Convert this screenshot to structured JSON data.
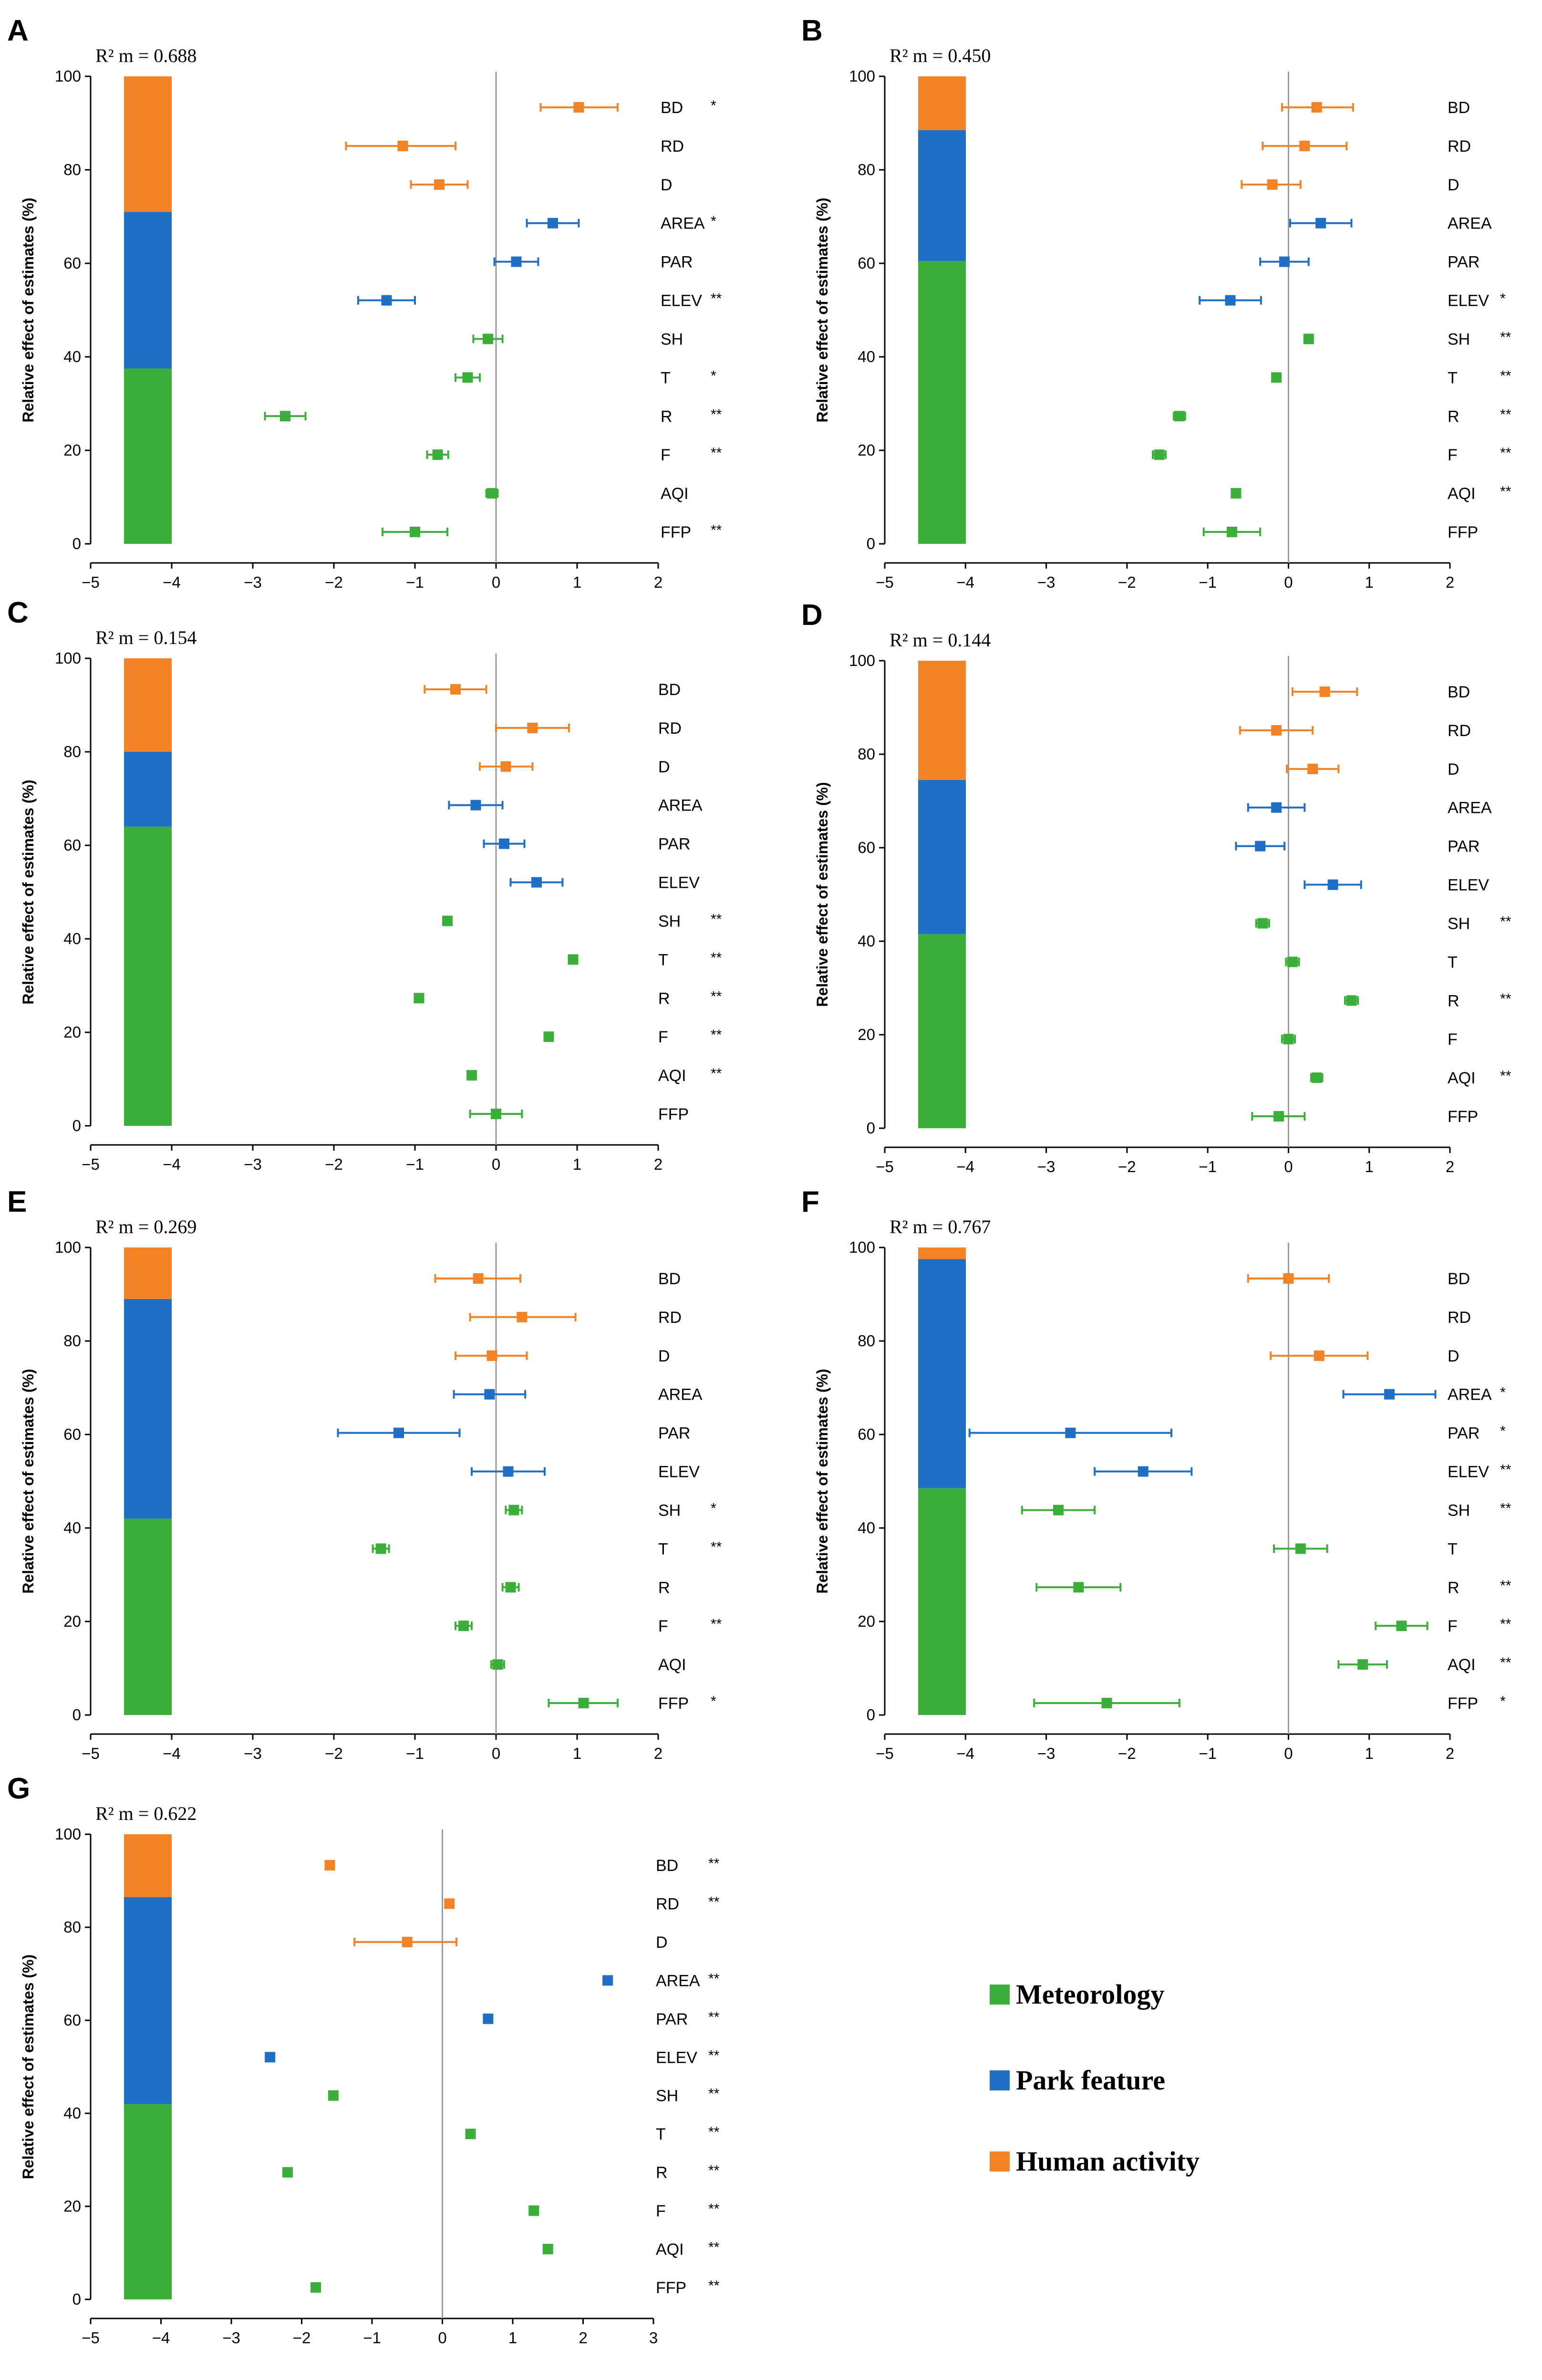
{
  "colors": {
    "meteorology": "#3cae3a",
    "park": "#1f6fc6",
    "human": "#f28326",
    "axis": "#000000",
    "zero_line": "#9a9a9a"
  },
  "legend": [
    {
      "key": "meteorology",
      "label": "Meteorology"
    },
    {
      "key": "park",
      "label": "Park feature"
    },
    {
      "key": "human",
      "label": "Human activity"
    }
  ],
  "chart_data": [
    {
      "type": "forest",
      "panel": "A",
      "r2_label": "R² m = 0.688",
      "ylabel": "Relative effect of estimates (%)",
      "ylim": [
        0,
        100
      ],
      "yticks": [
        "0",
        "20",
        "40",
        "60",
        "80",
        "100"
      ],
      "xlim": [
        -5,
        2
      ],
      "xticks": [
        "−5",
        "−4",
        "−3",
        "−2",
        "−1",
        "0",
        "1",
        "2"
      ],
      "stack": {
        "meteorology": 37.5,
        "park": 33.5,
        "human": 29
      },
      "variables": [
        {
          "name": "BD",
          "group": "human",
          "est": 1.02,
          "lo": 0.55,
          "hi": 1.5,
          "sig": "*"
        },
        {
          "name": "RD",
          "group": "human",
          "est": -1.15,
          "lo": -1.85,
          "hi": -0.5,
          "sig": ""
        },
        {
          "name": "D",
          "group": "human",
          "est": -0.7,
          "lo": -1.05,
          "hi": -0.35,
          "sig": ""
        },
        {
          "name": "AREA",
          "group": "park",
          "est": 0.7,
          "lo": 0.38,
          "hi": 1.02,
          "sig": "*"
        },
        {
          "name": "PAR",
          "group": "park",
          "est": 0.25,
          "lo": -0.02,
          "hi": 0.52,
          "sig": ""
        },
        {
          "name": "ELEV",
          "group": "park",
          "est": -1.35,
          "lo": -1.7,
          "hi": -1.0,
          "sig": "**"
        },
        {
          "name": "SH",
          "group": "meteorology",
          "est": -0.1,
          "lo": -0.28,
          "hi": 0.08,
          "sig": ""
        },
        {
          "name": "T",
          "group": "meteorology",
          "est": -0.35,
          "lo": -0.5,
          "hi": -0.2,
          "sig": "*"
        },
        {
          "name": "R",
          "group": "meteorology",
          "est": -2.6,
          "lo": -2.85,
          "hi": -2.35,
          "sig": "**"
        },
        {
          "name": "F",
          "group": "meteorology",
          "est": -0.72,
          "lo": -0.85,
          "hi": -0.59,
          "sig": "**"
        },
        {
          "name": "AQI",
          "group": "meteorology",
          "est": -0.05,
          "lo": -0.12,
          "hi": 0.02,
          "sig": ""
        },
        {
          "name": "FFP",
          "group": "meteorology",
          "est": -1.0,
          "lo": -1.4,
          "hi": -0.6,
          "sig": "**"
        }
      ]
    },
    {
      "type": "forest",
      "panel": "B",
      "r2_label": "R² m = 0.450",
      "ylabel": "Relative effect of estimates (%)",
      "ylim": [
        0,
        100
      ],
      "yticks": [
        "0",
        "20",
        "40",
        "60",
        "80",
        "100"
      ],
      "xlim": [
        -5,
        2
      ],
      "xticks": [
        "−5",
        "−4",
        "−3",
        "−2",
        "−1",
        "0",
        "1",
        "2"
      ],
      "stack": {
        "meteorology": 60.5,
        "park": 28,
        "human": 11.5
      },
      "variables": [
        {
          "name": "BD",
          "group": "human",
          "est": 0.35,
          "lo": -0.08,
          "hi": 0.8,
          "sig": ""
        },
        {
          "name": "RD",
          "group": "human",
          "est": 0.2,
          "lo": -0.32,
          "hi": 0.72,
          "sig": ""
        },
        {
          "name": "D",
          "group": "human",
          "est": -0.2,
          "lo": -0.58,
          "hi": 0.15,
          "sig": ""
        },
        {
          "name": "AREA",
          "group": "park",
          "est": 0.4,
          "lo": 0.02,
          "hi": 0.78,
          "sig": ""
        },
        {
          "name": "PAR",
          "group": "park",
          "est": -0.05,
          "lo": -0.35,
          "hi": 0.25,
          "sig": ""
        },
        {
          "name": "ELEV",
          "group": "park",
          "est": -0.72,
          "lo": -1.1,
          "hi": -0.34,
          "sig": "*"
        },
        {
          "name": "SH",
          "group": "meteorology",
          "est": 0.25,
          "lo": 0.2,
          "hi": 0.3,
          "sig": "**"
        },
        {
          "name": "T",
          "group": "meteorology",
          "est": -0.15,
          "lo": -0.2,
          "hi": -0.1,
          "sig": "**"
        },
        {
          "name": "R",
          "group": "meteorology",
          "est": -1.35,
          "lo": -1.42,
          "hi": -1.28,
          "sig": "**"
        },
        {
          "name": "F",
          "group": "meteorology",
          "est": -1.6,
          "lo": -1.68,
          "hi": -1.52,
          "sig": "**"
        },
        {
          "name": "AQI",
          "group": "meteorology",
          "est": -0.65,
          "lo": -0.7,
          "hi": -0.6,
          "sig": "**"
        },
        {
          "name": "FFP",
          "group": "meteorology",
          "est": -0.7,
          "lo": -1.05,
          "hi": -0.35,
          "sig": ""
        }
      ]
    },
    {
      "type": "forest",
      "panel": "C",
      "r2_label": "R² m = 0.154",
      "ylabel": "Relative effect of estimates (%)",
      "ylim": [
        0,
        100
      ],
      "yticks": [
        "0",
        "20",
        "40",
        "60",
        "80",
        "100"
      ],
      "xlim": [
        -5,
        2
      ],
      "xticks": [
        "−5",
        "−4",
        "−3",
        "−2",
        "−1",
        "0",
        "1",
        "2"
      ],
      "stack": {
        "meteorology": 64,
        "park": 16,
        "human": 20
      },
      "variables": [
        {
          "name": "BD",
          "group": "human",
          "est": -0.5,
          "lo": -0.88,
          "hi": -0.12,
          "sig": ""
        },
        {
          "name": "RD",
          "group": "human",
          "est": 0.45,
          "lo": 0.0,
          "hi": 0.9,
          "sig": ""
        },
        {
          "name": "D",
          "group": "human",
          "est": 0.12,
          "lo": -0.2,
          "hi": 0.45,
          "sig": ""
        },
        {
          "name": "AREA",
          "group": "park",
          "est": -0.25,
          "lo": -0.58,
          "hi": 0.08,
          "sig": ""
        },
        {
          "name": "PAR",
          "group": "park",
          "est": 0.1,
          "lo": -0.15,
          "hi": 0.35,
          "sig": ""
        },
        {
          "name": "ELEV",
          "group": "park",
          "est": 0.5,
          "lo": 0.18,
          "hi": 0.82,
          "sig": ""
        },
        {
          "name": "SH",
          "group": "meteorology",
          "est": -0.6,
          "lo": -0.65,
          "hi": -0.55,
          "sig": "**"
        },
        {
          "name": "T",
          "group": "meteorology",
          "est": 0.95,
          "lo": 0.9,
          "hi": 1.0,
          "sig": "**"
        },
        {
          "name": "R",
          "group": "meteorology",
          "est": -0.95,
          "lo": -1.0,
          "hi": -0.9,
          "sig": "**"
        },
        {
          "name": "F",
          "group": "meteorology",
          "est": 0.65,
          "lo": 0.6,
          "hi": 0.7,
          "sig": "**"
        },
        {
          "name": "AQI",
          "group": "meteorology",
          "est": -0.3,
          "lo": -0.35,
          "hi": -0.25,
          "sig": "**"
        },
        {
          "name": "FFP",
          "group": "meteorology",
          "est": 0.0,
          "lo": -0.32,
          "hi": 0.32,
          "sig": ""
        }
      ]
    },
    {
      "type": "forest",
      "panel": "D",
      "r2_label": "R² m = 0.144",
      "ylabel": "Relative effect of estimates (%)",
      "ylim": [
        0,
        100
      ],
      "yticks": [
        "0",
        "20",
        "40",
        "60",
        "80",
        "100"
      ],
      "xlim": [
        -5,
        2
      ],
      "xticks": [
        "−5",
        "−4",
        "−3",
        "−2",
        "−1",
        "0",
        "1",
        "2"
      ],
      "stack": {
        "meteorology": 41.5,
        "park": 33,
        "human": 25.5
      },
      "variables": [
        {
          "name": "BD",
          "group": "human",
          "est": 0.45,
          "lo": 0.05,
          "hi": 0.85,
          "sig": ""
        },
        {
          "name": "RD",
          "group": "human",
          "est": -0.15,
          "lo": -0.6,
          "hi": 0.3,
          "sig": ""
        },
        {
          "name": "D",
          "group": "human",
          "est": 0.3,
          "lo": -0.02,
          "hi": 0.62,
          "sig": ""
        },
        {
          "name": "AREA",
          "group": "park",
          "est": -0.15,
          "lo": -0.5,
          "hi": 0.2,
          "sig": ""
        },
        {
          "name": "PAR",
          "group": "park",
          "est": -0.35,
          "lo": -0.65,
          "hi": -0.05,
          "sig": ""
        },
        {
          "name": "ELEV",
          "group": "park",
          "est": 0.55,
          "lo": 0.2,
          "hi": 0.9,
          "sig": ""
        },
        {
          "name": "SH",
          "group": "meteorology",
          "est": -0.32,
          "lo": -0.4,
          "hi": -0.24,
          "sig": "**"
        },
        {
          "name": "T",
          "group": "meteorology",
          "est": 0.05,
          "lo": -0.03,
          "hi": 0.13,
          "sig": ""
        },
        {
          "name": "R",
          "group": "meteorology",
          "est": 0.78,
          "lo": 0.7,
          "hi": 0.86,
          "sig": "**"
        },
        {
          "name": "F",
          "group": "meteorology",
          "est": 0.0,
          "lo": -0.08,
          "hi": 0.08,
          "sig": ""
        },
        {
          "name": "AQI",
          "group": "meteorology",
          "est": 0.35,
          "lo": 0.28,
          "hi": 0.42,
          "sig": "**"
        },
        {
          "name": "FFP",
          "group": "meteorology",
          "est": -0.12,
          "lo": -0.45,
          "hi": 0.2,
          "sig": ""
        }
      ]
    },
    {
      "type": "forest",
      "panel": "E",
      "r2_label": "R² m = 0.269",
      "ylabel": "Relative effect of estimates (%)",
      "ylim": [
        0,
        100
      ],
      "yticks": [
        "0",
        "20",
        "40",
        "60",
        "80",
        "100"
      ],
      "xlim": [
        -5,
        2
      ],
      "xticks": [
        "−5",
        "−4",
        "−3",
        "−2",
        "−1",
        "0",
        "1",
        "2"
      ],
      "stack": {
        "meteorology": 42,
        "park": 47,
        "human": 11
      },
      "variables": [
        {
          "name": "BD",
          "group": "human",
          "est": -0.22,
          "lo": -0.75,
          "hi": 0.3,
          "sig": ""
        },
        {
          "name": "RD",
          "group": "human",
          "est": 0.32,
          "lo": -0.32,
          "hi": 0.98,
          "sig": ""
        },
        {
          "name": "D",
          "group": "human",
          "est": -0.05,
          "lo": -0.5,
          "hi": 0.38,
          "sig": ""
        },
        {
          "name": "AREA",
          "group": "park",
          "est": -0.08,
          "lo": -0.52,
          "hi": 0.36,
          "sig": ""
        },
        {
          "name": "PAR",
          "group": "park",
          "est": -1.2,
          "lo": -1.95,
          "hi": -0.45,
          "sig": ""
        },
        {
          "name": "ELEV",
          "group": "park",
          "est": 0.15,
          "lo": -0.3,
          "hi": 0.6,
          "sig": ""
        },
        {
          "name": "SH",
          "group": "meteorology",
          "est": 0.22,
          "lo": 0.12,
          "hi": 0.32,
          "sig": "*"
        },
        {
          "name": "T",
          "group": "meteorology",
          "est": -1.42,
          "lo": -1.52,
          "hi": -1.32,
          "sig": "**"
        },
        {
          "name": "R",
          "group": "meteorology",
          "est": 0.18,
          "lo": 0.08,
          "hi": 0.28,
          "sig": ""
        },
        {
          "name": "F",
          "group": "meteorology",
          "est": -0.4,
          "lo": -0.5,
          "hi": -0.3,
          "sig": "**"
        },
        {
          "name": "AQI",
          "group": "meteorology",
          "est": 0.02,
          "lo": -0.06,
          "hi": 0.1,
          "sig": ""
        },
        {
          "name": "FFP",
          "group": "meteorology",
          "est": 1.08,
          "lo": 0.65,
          "hi": 1.5,
          "sig": "*"
        }
      ]
    },
    {
      "type": "forest",
      "panel": "F",
      "r2_label": "R² m = 0.767",
      "ylabel": "Relative effect of estimates (%)",
      "ylim": [
        0,
        100
      ],
      "yticks": [
        "0",
        "20",
        "40",
        "60",
        "80",
        "100"
      ],
      "xlim": [
        -5,
        2
      ],
      "xticks": [
        "−5",
        "−4",
        "−3",
        "−2",
        "−1",
        "0",
        "1",
        "2"
      ],
      "stack": {
        "meteorology": 48.5,
        "park": 49,
        "human": 2.5
      },
      "variables": [
        {
          "name": "BD",
          "group": "human",
          "est": 0.0,
          "lo": -0.5,
          "hi": 0.5,
          "sig": ""
        },
        {
          "name": "RD",
          "group": "human",
          "est": null,
          "lo": null,
          "hi": null,
          "sig": ""
        },
        {
          "name": "D",
          "group": "human",
          "est": 0.38,
          "lo": -0.22,
          "hi": 0.98,
          "sig": ""
        },
        {
          "name": "AREA",
          "group": "park",
          "est": 1.25,
          "lo": 0.68,
          "hi": 1.82,
          "sig": "*"
        },
        {
          "name": "PAR",
          "group": "park",
          "est": -2.7,
          "lo": -3.95,
          "hi": -1.45,
          "sig": "*"
        },
        {
          "name": "ELEV",
          "group": "park",
          "est": -1.8,
          "lo": -2.4,
          "hi": -1.2,
          "sig": "**"
        },
        {
          "name": "SH",
          "group": "meteorology",
          "est": -2.85,
          "lo": -3.3,
          "hi": -2.4,
          "sig": "**"
        },
        {
          "name": "T",
          "group": "meteorology",
          "est": 0.15,
          "lo": -0.18,
          "hi": 0.48,
          "sig": ""
        },
        {
          "name": "R",
          "group": "meteorology",
          "est": -2.6,
          "lo": -3.12,
          "hi": -2.08,
          "sig": "**"
        },
        {
          "name": "F",
          "group": "meteorology",
          "est": 1.4,
          "lo": 1.08,
          "hi": 1.72,
          "sig": "**"
        },
        {
          "name": "AQI",
          "group": "meteorology",
          "est": 0.92,
          "lo": 0.62,
          "hi": 1.22,
          "sig": "**"
        },
        {
          "name": "FFP",
          "group": "meteorology",
          "est": -2.25,
          "lo": -3.15,
          "hi": -1.35,
          "sig": "*"
        }
      ]
    },
    {
      "type": "forest",
      "panel": "G",
      "r2_label": "R² m = 0.622",
      "ylabel": "Relative effect of estimates (%)",
      "ylim": [
        0,
        100
      ],
      "yticks": [
        "0",
        "20",
        "40",
        "60",
        "80",
        "100"
      ],
      "xlim": [
        -5,
        3
      ],
      "xticks": [
        "−5",
        "−4",
        "−3",
        "−2",
        "−1",
        "0",
        "1",
        "2",
        "3"
      ],
      "stack": {
        "meteorology": 42,
        "park": 44.5,
        "human": 13.5
      },
      "variables": [
        {
          "name": "BD",
          "group": "human",
          "est": -1.6,
          "lo": -1.6,
          "hi": -1.6,
          "sig": "**"
        },
        {
          "name": "RD",
          "group": "human",
          "est": 0.1,
          "lo": 0.1,
          "hi": 0.1,
          "sig": "**"
        },
        {
          "name": "D",
          "group": "human",
          "est": -0.5,
          "lo": -1.25,
          "hi": 0.2,
          "sig": ""
        },
        {
          "name": "AREA",
          "group": "park",
          "est": 2.35,
          "lo": 2.35,
          "hi": 2.35,
          "sig": "**"
        },
        {
          "name": "PAR",
          "group": "park",
          "est": 0.65,
          "lo": 0.65,
          "hi": 0.65,
          "sig": "**"
        },
        {
          "name": "ELEV",
          "group": "park",
          "est": -2.45,
          "lo": -2.45,
          "hi": -2.45,
          "sig": "**"
        },
        {
          "name": "SH",
          "group": "meteorology",
          "est": -1.55,
          "lo": -1.55,
          "hi": -1.55,
          "sig": "**"
        },
        {
          "name": "T",
          "group": "meteorology",
          "est": 0.4,
          "lo": 0.4,
          "hi": 0.4,
          "sig": "**"
        },
        {
          "name": "R",
          "group": "meteorology",
          "est": -2.2,
          "lo": -2.2,
          "hi": -2.2,
          "sig": "**"
        },
        {
          "name": "F",
          "group": "meteorology",
          "est": 1.3,
          "lo": 1.3,
          "hi": 1.3,
          "sig": "**"
        },
        {
          "name": "AQI",
          "group": "meteorology",
          "est": 1.5,
          "lo": 1.5,
          "hi": 1.5,
          "sig": "**"
        },
        {
          "name": "FFP",
          "group": "meteorology",
          "est": -1.8,
          "lo": -1.8,
          "hi": -1.8,
          "sig": "**"
        }
      ]
    }
  ]
}
